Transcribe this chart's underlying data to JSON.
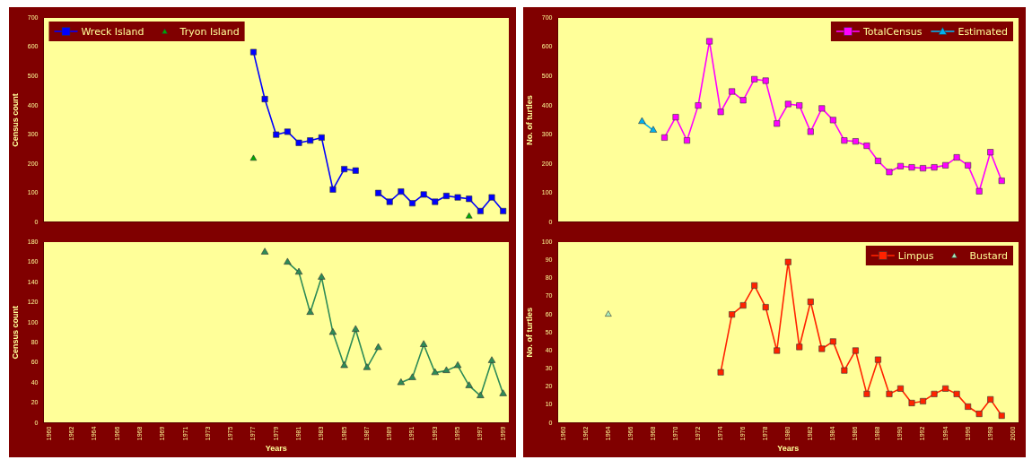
{
  "chart_data": [
    {
      "type": "line",
      "ylabel": "Census count",
      "categories": [
        "1960",
        null,
        "1962",
        null,
        "1964",
        null,
        "1966",
        null,
        "1968",
        null,
        "1969",
        null,
        "1971",
        null,
        "1973",
        null,
        "1975",
        null,
        "1977",
        null,
        "1979",
        null,
        "1981",
        null,
        "1983",
        null,
        "1985",
        null,
        "1987",
        null,
        "1989",
        null,
        "1991",
        null,
        "1993",
        null,
        "1995",
        null,
        "1997",
        null,
        "1999"
      ],
      "ylim": [
        0,
        700
      ],
      "yticks": [
        0,
        100,
        200,
        300,
        400,
        500,
        600,
        700
      ],
      "tick_labels": "y",
      "legend": "top left",
      "series": [
        {
          "name": "Wreck Island",
          "type": "line",
          "marker": "square",
          "color": "#0000ff",
          "values": [
            null,
            null,
            null,
            null,
            null,
            null,
            null,
            null,
            null,
            null,
            null,
            null,
            null,
            null,
            null,
            null,
            null,
            null,
            583,
            422,
            300,
            310,
            272,
            280,
            290,
            112,
            182,
            177,
            null,
            100,
            70,
            105,
            65,
            95,
            70,
            90,
            85,
            80,
            38,
            85,
            38
          ]
        },
        {
          "name": "Tryon Island",
          "type": "scatter",
          "marker": "triangle",
          "color": "#00aa00",
          "values": [
            null,
            null,
            null,
            null,
            null,
            null,
            null,
            null,
            null,
            null,
            null,
            null,
            null,
            null,
            null,
            null,
            null,
            null,
            218,
            null,
            null,
            null,
            null,
            null,
            null,
            null,
            null,
            null,
            null,
            null,
            null,
            null,
            null,
            null,
            null,
            null,
            null,
            20,
            null,
            null,
            null
          ]
        }
      ]
    },
    {
      "type": "line",
      "ylabel": "No. of turtles",
      "categories": [
        "1960",
        null,
        "1962",
        null,
        "1964",
        null,
        "1966",
        null,
        "1968",
        null,
        "1970",
        null,
        "1972",
        null,
        "1974",
        null,
        "1976",
        null,
        "1978",
        null,
        "1980",
        null,
        "1982",
        null,
        "1984",
        null,
        "1986",
        null,
        "1988",
        null,
        "1990",
        null,
        "1992",
        null,
        "1994",
        null,
        "1996",
        null,
        "1998",
        null,
        "2000"
      ],
      "ylim": [
        0,
        700
      ],
      "yticks": [
        0,
        100,
        200,
        300,
        400,
        500,
        600,
        700
      ],
      "tick_labels": "y",
      "legend": "top right",
      "series": [
        {
          "name": "TotalCensus",
          "type": "line",
          "marker": "square",
          "color": "#ff00ff",
          "values": [
            null,
            null,
            null,
            null,
            null,
            null,
            null,
            null,
            null,
            290,
            360,
            280,
            400,
            620,
            378,
            448,
            418,
            490,
            485,
            338,
            405,
            400,
            310,
            390,
            350,
            280,
            277,
            262,
            210,
            172,
            192,
            188,
            185,
            188,
            195,
            222,
            195,
            106,
            240,
            142,
            null
          ]
        },
        {
          "name": "Estimated",
          "type": "line",
          "marker": "triangle",
          "color": "#00b0f0",
          "values": [
            null,
            null,
            null,
            null,
            null,
            null,
            null,
            345,
            315,
            null,
            null,
            null,
            null,
            null,
            null,
            null,
            null,
            null,
            null,
            null,
            null,
            null,
            null,
            null,
            null,
            null,
            null,
            null,
            null,
            null,
            null,
            null,
            null,
            null,
            null,
            null,
            null,
            null,
            null,
            null,
            null
          ]
        }
      ]
    },
    {
      "type": "line",
      "xlabel": "Years",
      "ylabel": "Census count",
      "categories": [
        "1960",
        null,
        "1962",
        null,
        "1964",
        null,
        "1966",
        null,
        "1968",
        null,
        "1969",
        null,
        "1971",
        null,
        "1973",
        null,
        "1975",
        null,
        "1977",
        null,
        "1979",
        null,
        "1981",
        null,
        "1983",
        null,
        "1985",
        null,
        "1987",
        null,
        "1989",
        null,
        "1991",
        null,
        "1993",
        null,
        "1995",
        null,
        "1997",
        null,
        "1999"
      ],
      "ylim": [
        0,
        180
      ],
      "yticks": [
        0,
        20,
        40,
        60,
        80,
        100,
        120,
        140,
        160,
        180
      ],
      "series": [
        {
          "type": "line",
          "marker": "triangle",
          "color": "#2e8b57",
          "values": [
            null,
            null,
            null,
            null,
            null,
            null,
            null,
            null,
            null,
            null,
            null,
            null,
            null,
            null,
            null,
            null,
            null,
            null,
            null,
            170,
            null,
            160,
            150,
            110,
            145,
            90,
            57,
            93,
            55,
            75,
            null,
            40,
            45,
            78,
            50,
            52,
            57,
            37,
            27,
            62,
            29
          ]
        }
      ]
    },
    {
      "type": "line",
      "xlabel": "Years",
      "ylabel": "No. of turtles",
      "categories": [
        "1960",
        null,
        "1962",
        null,
        "1964",
        null,
        "1966",
        null,
        "1968",
        null,
        "1970",
        null,
        "1972",
        null,
        "1974",
        null,
        "1976",
        null,
        "1978",
        null,
        "1980",
        null,
        "1982",
        null,
        "1984",
        null,
        "1986",
        null,
        "1988",
        null,
        "1990",
        null,
        "1992",
        null,
        "1994",
        null,
        "1996",
        null,
        "1998",
        null,
        "2000"
      ],
      "ylim": [
        0,
        100
      ],
      "yticks": [
        0,
        10,
        20,
        30,
        40,
        50,
        60,
        70,
        80,
        90,
        100
      ],
      "legend": "top right",
      "series": [
        {
          "name": "Limpus",
          "type": "line",
          "marker": "square",
          "color": "#ff2200",
          "values": [
            null,
            null,
            null,
            null,
            null,
            null,
            null,
            null,
            null,
            null,
            null,
            null,
            null,
            null,
            28,
            60,
            65,
            76,
            64,
            40,
            89,
            42,
            67,
            41,
            45,
            29,
            40,
            16,
            35,
            16,
            19,
            11,
            12,
            16,
            19,
            16,
            9,
            5,
            13,
            4,
            null
          ]
        },
        {
          "name": "Bustard",
          "type": "scatter",
          "marker": "triangle",
          "color": "#aaeebb",
          "values": [
            null,
            null,
            null,
            null,
            60,
            null,
            null,
            null,
            null,
            null,
            null,
            null,
            null,
            null,
            null,
            null,
            null,
            null,
            null,
            null,
            null,
            null,
            null,
            null,
            null,
            null,
            null,
            null,
            null,
            null,
            null,
            null,
            null,
            null,
            null,
            null,
            null,
            null,
            null,
            null,
            null
          ]
        }
      ]
    }
  ]
}
